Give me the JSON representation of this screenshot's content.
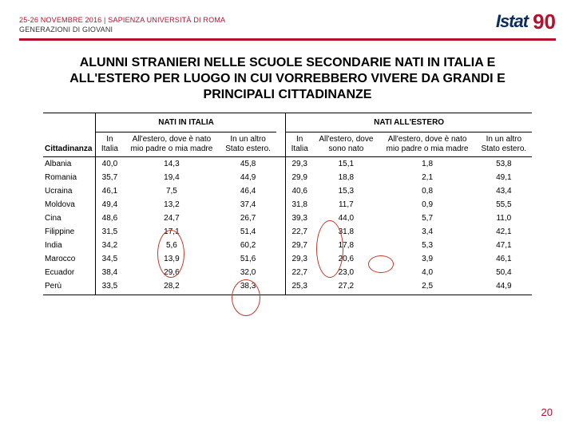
{
  "header": {
    "line1": "25-26 NOVEMBRE 2016 | SAPIENZA UNIVERSITÀ DI ROMA",
    "line2": "GENERAZIONI DI GIOVANI",
    "logo_text": "Istat",
    "logo_badge": "90"
  },
  "title": "ALUNNI STRANIERI NELLE SCUOLE SECONDARIE NATI IN ITALIA E ALL'ESTERO PER LUOGO IN CUI VORREBBERO VIVERE DA GRANDI E PRINCIPALI CITTADINANZE",
  "table": {
    "row_header": "Cittadinanza",
    "group1": "NATI IN ITALIA",
    "group2": "NATI ALL'ESTERO",
    "cols_g1": [
      "In Italia",
      "All'estero, dove è nato mio padre o mia madre",
      "In un altro Stato estero."
    ],
    "cols_g2": [
      "In Italia",
      "All'estero, dove sono nato",
      "All'estero, dove è nato mio padre o mia madre",
      "In un altro Stato estero."
    ],
    "rows": [
      {
        "label": "Albania",
        "g1": [
          "40,0",
          "14,3",
          "45,8"
        ],
        "g2": [
          "29,3",
          "15,1",
          "1,8",
          "53,8"
        ]
      },
      {
        "label": "Romania",
        "g1": [
          "35,7",
          "19,4",
          "44,9"
        ],
        "g2": [
          "29,9",
          "18,8",
          "2,1",
          "49,1"
        ]
      },
      {
        "label": "Ucraina",
        "g1": [
          "46,1",
          "7,5",
          "46,4"
        ],
        "g2": [
          "40,6",
          "15,3",
          "0,8",
          "43,4"
        ]
      },
      {
        "label": "Moldova",
        "g1": [
          "49,4",
          "13,2",
          "37,4"
        ],
        "g2": [
          "31,8",
          "11,7",
          "0,9",
          "55,5"
        ]
      },
      {
        "label": "Cina",
        "g1": [
          "48,6",
          "24,7",
          "26,7"
        ],
        "g2": [
          "39,3",
          "44,0",
          "5,7",
          "11,0"
        ]
      },
      {
        "label": "Filippine",
        "g1": [
          "31,5",
          "17,1",
          "51,4"
        ],
        "g2": [
          "22,7",
          "31,8",
          "3,4",
          "42,1"
        ]
      },
      {
        "label": "India",
        "g1": [
          "34,2",
          "5,6",
          "60,2"
        ],
        "g2": [
          "29,7",
          "17,8",
          "5,3",
          "47,1"
        ]
      },
      {
        "label": "Marocco",
        "g1": [
          "34,5",
          "13,9",
          "51,6"
        ],
        "g2": [
          "29,3",
          "20,6",
          "3,9",
          "46,1"
        ]
      },
      {
        "label": "Ecuador",
        "g1": [
          "38,4",
          "29,6",
          "32,0"
        ],
        "g2": [
          "22,7",
          "23,0",
          "4,0",
          "50,4"
        ]
      },
      {
        "label": "Perù",
        "g1": [
          "33,5",
          "28,2",
          "38,3"
        ],
        "g2": [
          "25,3",
          "27,2",
          "2,5",
          "44,9"
        ]
      }
    ]
  },
  "page_number": "20",
  "colors": {
    "accent": "#b4112e",
    "oval": "#c0392b",
    "text": "#000000",
    "logo_blue": "#0a2d5a"
  }
}
